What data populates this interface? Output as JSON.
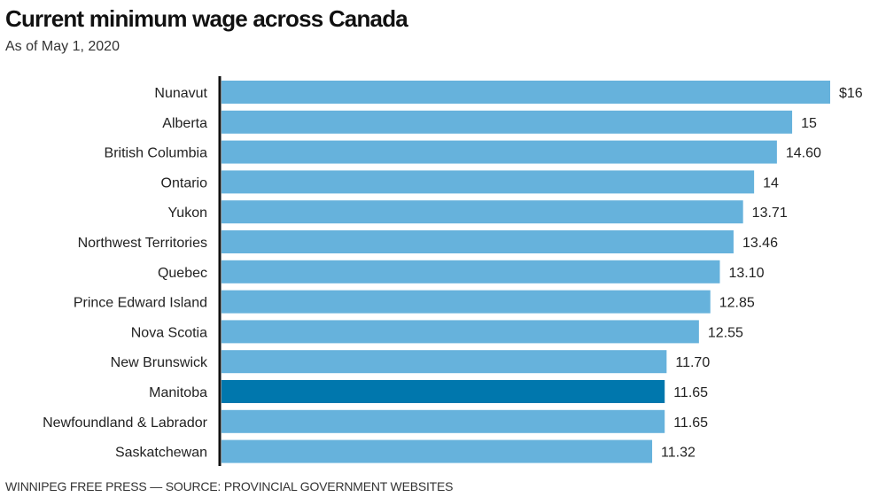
{
  "header": {
    "title": "Current minimum wage across Canada",
    "subtitle": "As of May 1, 2020"
  },
  "footer": {
    "source": "WINNIPEG FREE PRESS — SOURCE: PROVINCIAL GOVERNMENT WEBSITES"
  },
  "colors": {
    "bar": "#66b2dc",
    "highlight": "#0077ad",
    "axis": "#111111"
  },
  "chart_data": {
    "type": "bar",
    "orientation": "horizontal",
    "title": "Current minimum wage across Canada",
    "subtitle": "As of May 1, 2020",
    "xlabel": "",
    "ylabel": "",
    "xlim": [
      0,
      16
    ],
    "grid": false,
    "legend": "none",
    "unit": "$ per hour",
    "categories": [
      "Nunavut",
      "Alberta",
      "British Columbia",
      "Ontario",
      "Yukon",
      "Northwest Territories",
      "Quebec",
      "Prince Edward Island",
      "Nova Scotia",
      "New Brunswick",
      "Manitoba",
      "Newfoundland & Labrador",
      "Saskatchewan"
    ],
    "values": [
      16,
      15,
      14.6,
      14,
      13.71,
      13.46,
      13.1,
      12.85,
      12.55,
      11.7,
      11.65,
      11.65,
      11.32
    ],
    "value_labels": [
      "$16",
      "15",
      "14.60",
      "14",
      "13.71",
      "13.46",
      "13.10",
      "12.85",
      "12.55",
      "11.70",
      "11.65",
      "11.65",
      "11.32"
    ],
    "highlighted": [
      "Manitoba"
    ],
    "source": "WINNIPEG FREE PRESS — SOURCE: PROVINCIAL GOVERNMENT WEBSITES"
  }
}
